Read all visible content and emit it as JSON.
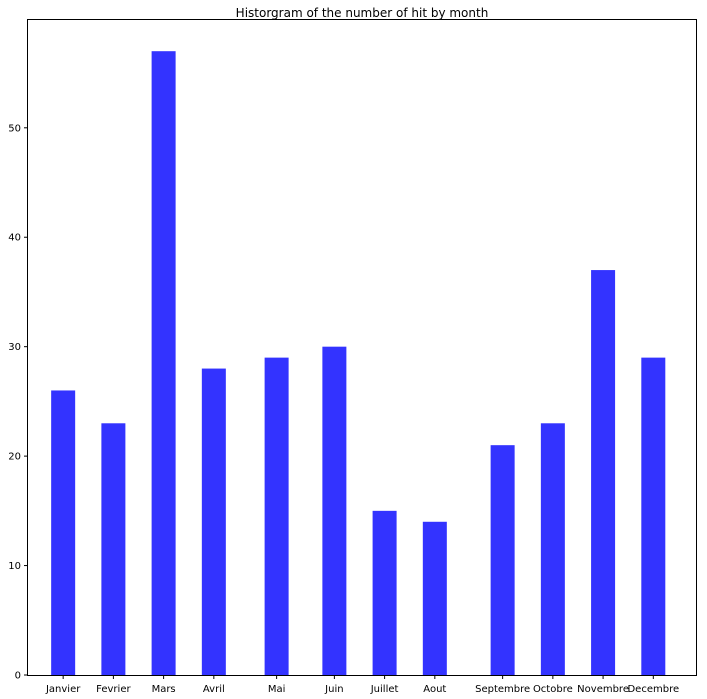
{
  "chart_data": {
    "type": "bar",
    "title": "Historgram of the number of hit by month",
    "xlabel": "",
    "ylabel": "",
    "categories": [
      "Janvier",
      "Fevrier",
      "Mars",
      "Avril",
      "Mai",
      "Juin",
      "Juillet",
      "Aout",
      "Septembre",
      "Octobre",
      "Novembre",
      "Decembre"
    ],
    "values": [
      26,
      23,
      57,
      28,
      29,
      30,
      15,
      14,
      21,
      23,
      37,
      29
    ],
    "x_positions": [
      1,
      2,
      3,
      4,
      5.25,
      6.4,
      7.4,
      8.4,
      9.75,
      10.75,
      11.75,
      12.75
    ],
    "xlim": [
      0.3,
      13.6
    ],
    "ylim": [
      0,
      59.85
    ],
    "yticks": [
      0,
      10,
      20,
      30,
      40,
      50
    ],
    "bar_color": "#3333ff",
    "grid": false,
    "legend": "none"
  }
}
